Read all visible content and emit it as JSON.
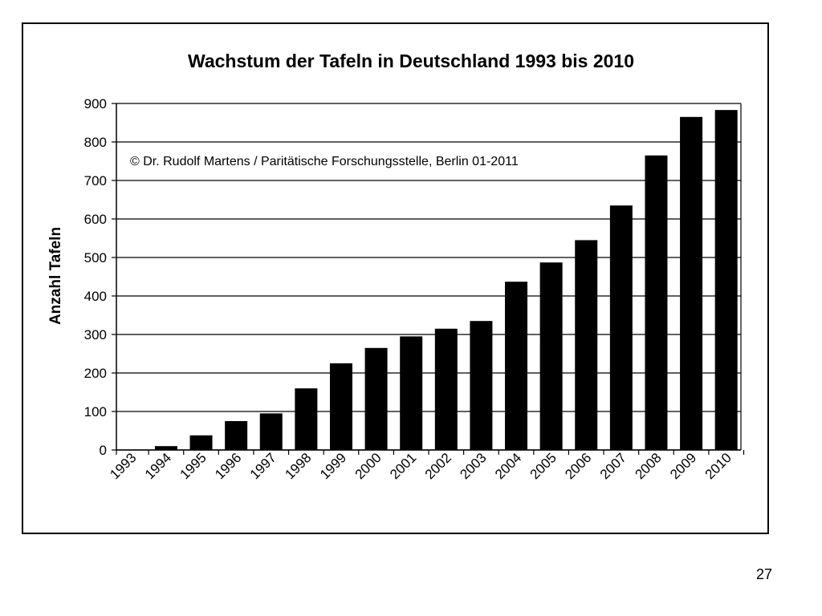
{
  "slide_number": "27",
  "chart_data": {
    "type": "bar",
    "title": "Wachstum der Tafeln in Deutschland 1993 bis 2010",
    "ylabel": "Anzahl Tafeln",
    "xlabel": "",
    "annotation": "© Dr. Rudolf Martens / Paritätische Forschungsstelle, Berlin 01-2011",
    "categories": [
      "1993",
      "1994",
      "1995",
      "1996",
      "1997",
      "1998",
      "1999",
      "2000",
      "2001",
      "2002",
      "2003",
      "2004",
      "2005",
      "2006",
      "2007",
      "2008",
      "2009",
      "2010"
    ],
    "values": [
      0,
      10,
      38,
      75,
      95,
      160,
      225,
      265,
      295,
      315,
      335,
      437,
      487,
      545,
      635,
      765,
      865,
      883
    ],
    "ylim": [
      0,
      900
    ],
    "yticks": [
      0,
      100,
      200,
      300,
      400,
      500,
      600,
      700,
      800,
      900
    ],
    "grid": true,
    "bar_color": "#000000"
  }
}
